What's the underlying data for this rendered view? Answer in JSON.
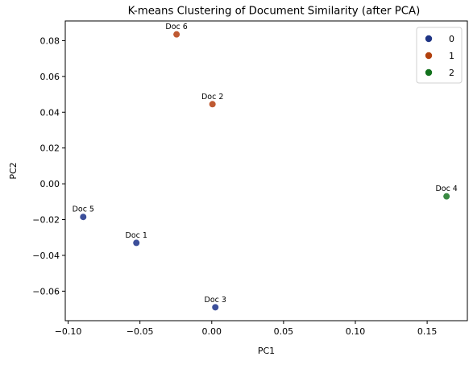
{
  "chart_data": {
    "type": "scatter",
    "title": "K-means Clustering of Document Similarity (after PCA)",
    "xlabel": "PC1",
    "ylabel": "PC2",
    "xlim": [
      -0.102,
      0.178
    ],
    "ylim": [
      -0.0765,
      0.091
    ],
    "xticks": [
      -0.1,
      -0.05,
      0.0,
      0.05,
      0.1,
      0.15
    ],
    "xtick_labels": [
      "−0.10",
      "−0.05",
      "0.00",
      "0.05",
      "0.10",
      "0.15"
    ],
    "yticks": [
      -0.06,
      -0.04,
      -0.02,
      0.0,
      0.02,
      0.04,
      0.06,
      0.08
    ],
    "ytick_labels": [
      "−0.06",
      "−0.04",
      "−0.02",
      "0.00",
      "0.02",
      "0.04",
      "0.06",
      "0.08"
    ],
    "grid": false,
    "legend_position": "top-right",
    "legend": [
      {
        "label": "0",
        "color": "#1f3585"
      },
      {
        "label": "1",
        "color": "#b1400d"
      },
      {
        "label": "2",
        "color": "#12711c"
      }
    ],
    "points": [
      {
        "label": "Doc 1",
        "x": -0.0525,
        "y": -0.033,
        "cluster": 0,
        "color": "#3c4f9a"
      },
      {
        "label": "Doc 2",
        "x": 0.0005,
        "y": 0.0445,
        "cluster": 1,
        "color": "#bf5a32"
      },
      {
        "label": "Doc 3",
        "x": 0.0025,
        "y": -0.069,
        "cluster": 0,
        "color": "#3c4f9a"
      },
      {
        "label": "Doc 4",
        "x": 0.1635,
        "y": -0.007,
        "cluster": 2,
        "color": "#3a8a43"
      },
      {
        "label": "Doc 5",
        "x": -0.0895,
        "y": -0.0185,
        "cluster": 0,
        "color": "#3c4f9a"
      },
      {
        "label": "Doc 6",
        "x": -0.0245,
        "y": 0.0835,
        "cluster": 1,
        "color": "#bf5a32"
      }
    ]
  }
}
